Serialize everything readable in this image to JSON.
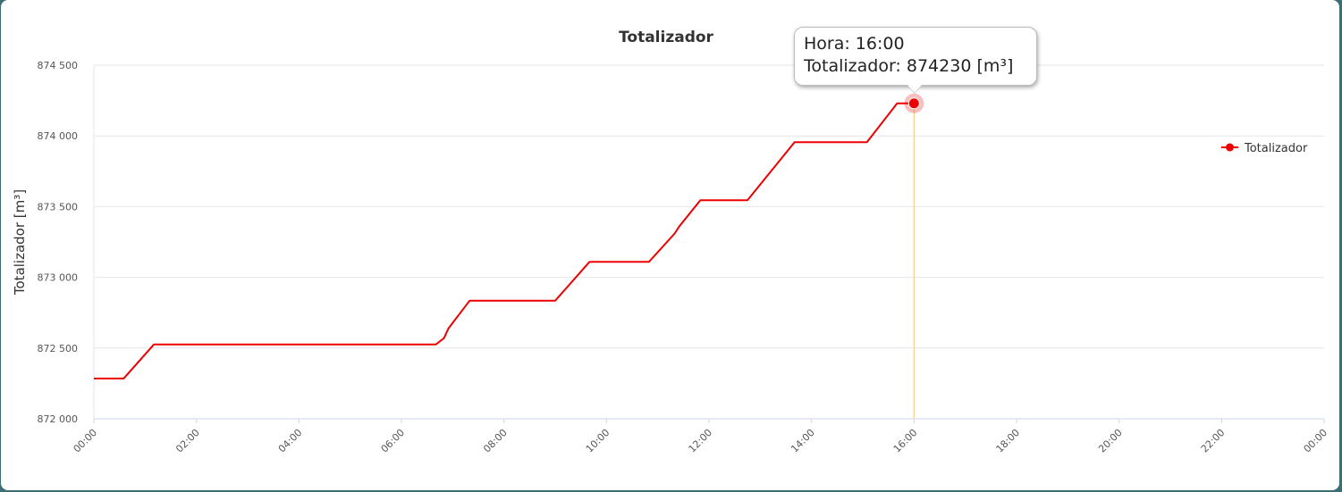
{
  "chart_data": {
    "type": "line",
    "title": "Totalizador",
    "xlabel": "",
    "ylabel": "Totalizador [m³]",
    "x_ticks": [
      "00:00",
      "02:00",
      "04:00",
      "06:00",
      "08:00",
      "10:00",
      "12:00",
      "14:00",
      "16:00",
      "18:00",
      "20:00",
      "22:00",
      "00:00"
    ],
    "xlim_hours": [
      0,
      24
    ],
    "y_ticks": [
      "872 000",
      "872 500",
      "873 000",
      "873 500",
      "874 000",
      "874 500"
    ],
    "ylim": [
      872000,
      874500
    ],
    "grid": "horizontal",
    "legend_position": "right",
    "series": [
      {
        "name": "Totalizador",
        "color": "#ee0000",
        "points": [
          {
            "hour": 0.0,
            "value": 872285
          },
          {
            "hour": 0.58,
            "value": 872285
          },
          {
            "hour": 1.17,
            "value": 872525
          },
          {
            "hour": 6.67,
            "value": 872525
          },
          {
            "hour": 6.83,
            "value": 872570
          },
          {
            "hour": 6.92,
            "value": 872640
          },
          {
            "hour": 7.33,
            "value": 872835
          },
          {
            "hour": 9.0,
            "value": 872835
          },
          {
            "hour": 9.67,
            "value": 873110
          },
          {
            "hour": 10.83,
            "value": 873110
          },
          {
            "hour": 11.33,
            "value": 873310
          },
          {
            "hour": 11.42,
            "value": 873360
          },
          {
            "hour": 11.83,
            "value": 873545
          },
          {
            "hour": 12.75,
            "value": 873545
          },
          {
            "hour": 13.67,
            "value": 873955
          },
          {
            "hour": 15.08,
            "value": 873955
          },
          {
            "hour": 15.67,
            "value": 874230
          },
          {
            "hour": 16.0,
            "value": 874230
          }
        ]
      }
    ],
    "tooltip": {
      "hour": 16.0,
      "value": 874230,
      "line1": "Hora: 16:00",
      "line2": "Totalizador: 874230 [m³]"
    }
  }
}
